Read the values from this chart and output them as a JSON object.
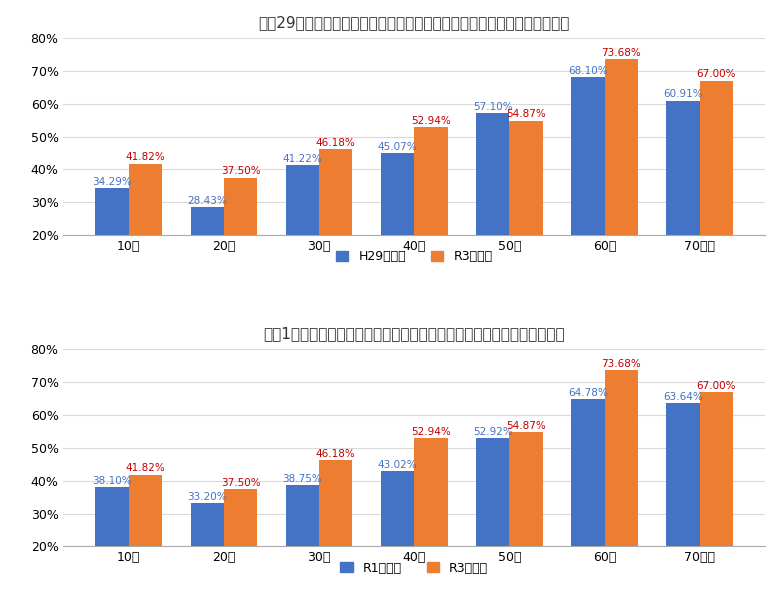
{
  "chart1": {
    "title": "平成29年衆院選との投票率の比較（標準的な投票所＝市民体育センター）",
    "categories": [
      "10代",
      "20代",
      "30代",
      "40代",
      "50代",
      "60代",
      "70代～"
    ],
    "series1": {
      "label": "H29衆院選",
      "values": [
        34.29,
        28.43,
        41.22,
        45.07,
        57.1,
        68.1,
        60.91
      ],
      "color": "#4472C4"
    },
    "series2": {
      "label": "R3衆院選",
      "values": [
        41.82,
        37.5,
        46.18,
        52.94,
        54.87,
        73.68,
        67.0
      ],
      "color": "#ED7D31"
    }
  },
  "chart2": {
    "title": "令和1年参院選との投票率の比較（標準的な投票所＝市民体育センター）",
    "categories": [
      "10代",
      "20代",
      "30代",
      "40代",
      "50代",
      "60代",
      "70代～"
    ],
    "series1": {
      "label": "R1参院選",
      "values": [
        38.1,
        33.2,
        38.75,
        43.02,
        52.92,
        64.78,
        63.64
      ],
      "color": "#4472C4"
    },
    "series2": {
      "label": "R3衆院選",
      "values": [
        41.82,
        37.5,
        46.18,
        52.94,
        54.87,
        73.68,
        67.0
      ],
      "color": "#ED7D31"
    }
  },
  "label1_color": "#4472C4",
  "label2_color": "#C00000",
  "ylim": [
    20,
    80
  ],
  "yticks": [
    20,
    30,
    40,
    50,
    60,
    70,
    80
  ],
  "bar_width": 0.35,
  "background_color": "#FFFFFF",
  "grid_color": "#D9D9D9",
  "title_fontsize": 11,
  "label_fontsize": 7.5,
  "tick_fontsize": 9,
  "legend_fontsize": 9
}
